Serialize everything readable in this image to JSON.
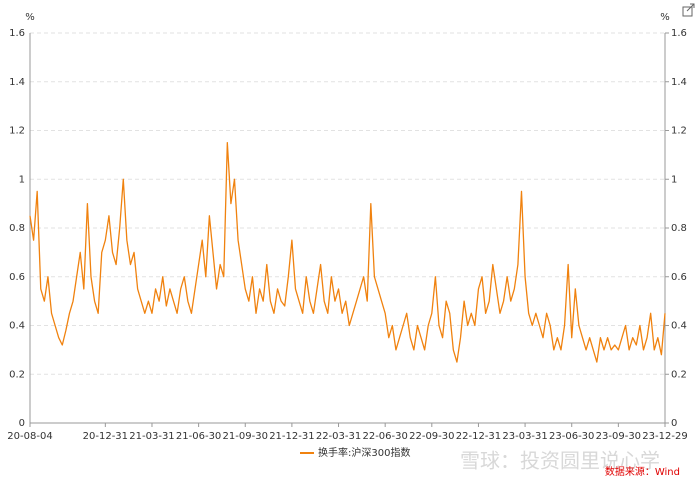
{
  "chart_data": {
    "type": "line",
    "y_unit": "%",
    "categories": [
      "20-08-04",
      null,
      null,
      null,
      null,
      null,
      null,
      null,
      null,
      null,
      null,
      null,
      null,
      null,
      null,
      null,
      null,
      null,
      null,
      null,
      null,
      "20-12-31",
      null,
      null,
      null,
      null,
      null,
      null,
      null,
      null,
      null,
      null,
      null,
      null,
      "21-03-31",
      null,
      null,
      null,
      null,
      null,
      null,
      null,
      null,
      null,
      null,
      null,
      null,
      "21-06-30",
      null,
      null,
      null,
      null,
      null,
      null,
      null,
      null,
      null,
      null,
      null,
      null,
      "21-09-30",
      null,
      null,
      null,
      null,
      null,
      null,
      null,
      null,
      null,
      null,
      null,
      null,
      "21-12-31",
      null,
      null,
      null,
      null,
      null,
      null,
      null,
      null,
      null,
      null,
      null,
      null,
      "22-03-31",
      null,
      null,
      null,
      null,
      null,
      null,
      null,
      null,
      null,
      null,
      null,
      null,
      "22-06-30",
      null,
      null,
      null,
      null,
      null,
      null,
      null,
      null,
      null,
      null,
      null,
      null,
      "22-09-30",
      null,
      null,
      null,
      null,
      null,
      null,
      null,
      null,
      null,
      null,
      null,
      null,
      "22-12-31",
      null,
      null,
      null,
      null,
      null,
      null,
      null,
      null,
      null,
      null,
      null,
      null,
      "23-03-31",
      null,
      null,
      null,
      null,
      null,
      null,
      null,
      null,
      null,
      null,
      null,
      null,
      "23-06-30",
      null,
      null,
      null,
      null,
      null,
      null,
      null,
      null,
      null,
      null,
      null,
      null,
      "23-09-30",
      null,
      null,
      null,
      null,
      null,
      null,
      null,
      null,
      null,
      null,
      null,
      null,
      "23-12-29"
    ],
    "series": [
      {
        "name": "换手率:沪深300指数",
        "color": "#f0820f",
        "values": [
          0.85,
          0.75,
          0.95,
          0.55,
          0.5,
          0.6,
          0.45,
          0.4,
          0.35,
          0.32,
          0.38,
          0.45,
          0.5,
          0.6,
          0.7,
          0.55,
          0.9,
          0.6,
          0.5,
          0.45,
          0.7,
          0.75,
          0.85,
          0.7,
          0.65,
          0.8,
          1.0,
          0.75,
          0.65,
          0.7,
          0.55,
          0.5,
          0.45,
          0.5,
          0.45,
          0.55,
          0.5,
          0.6,
          0.48,
          0.55,
          0.5,
          0.45,
          0.55,
          0.6,
          0.5,
          0.45,
          0.55,
          0.65,
          0.75,
          0.6,
          0.85,
          0.7,
          0.55,
          0.65,
          0.6,
          1.15,
          0.9,
          1.0,
          0.75,
          0.65,
          0.55,
          0.5,
          0.6,
          0.45,
          0.55,
          0.5,
          0.65,
          0.5,
          0.45,
          0.55,
          0.5,
          0.48,
          0.6,
          0.75,
          0.55,
          0.5,
          0.45,
          0.6,
          0.5,
          0.45,
          0.55,
          0.65,
          0.5,
          0.45,
          0.6,
          0.5,
          0.55,
          0.45,
          0.5,
          0.4,
          0.45,
          0.5,
          0.55,
          0.6,
          0.5,
          0.9,
          0.6,
          0.55,
          0.5,
          0.45,
          0.35,
          0.4,
          0.3,
          0.35,
          0.4,
          0.45,
          0.35,
          0.3,
          0.4,
          0.35,
          0.3,
          0.4,
          0.45,
          0.6,
          0.4,
          0.35,
          0.5,
          0.45,
          0.3,
          0.25,
          0.35,
          0.5,
          0.4,
          0.45,
          0.4,
          0.55,
          0.6,
          0.45,
          0.5,
          0.65,
          0.55,
          0.45,
          0.5,
          0.6,
          0.5,
          0.55,
          0.65,
          0.95,
          0.6,
          0.45,
          0.4,
          0.45,
          0.4,
          0.35,
          0.45,
          0.4,
          0.3,
          0.35,
          0.3,
          0.4,
          0.65,
          0.35,
          0.55,
          0.4,
          0.35,
          0.3,
          0.35,
          0.3,
          0.25,
          0.35,
          0.3,
          0.35,
          0.3,
          0.32,
          0.3,
          0.35,
          0.4,
          0.3,
          0.35,
          0.32,
          0.4,
          0.3,
          0.35,
          0.45,
          0.3,
          0.35,
          0.28,
          0.45
        ]
      }
    ],
    "ylim": [
      0,
      1.6
    ],
    "yticks": [
      0,
      0.2,
      0.4,
      0.6,
      0.8,
      1,
      1.2,
      1.4,
      1.6
    ],
    "y2lim": [
      0,
      1.6
    ],
    "y2ticks": [
      0,
      0.2,
      0.4,
      0.6,
      0.8,
      1,
      1.2,
      1.4,
      1.6
    ],
    "grid": true,
    "legend": "bottom",
    "source": "数据来源：Wind",
    "watermark": "雪球：投资圆里说心学"
  }
}
